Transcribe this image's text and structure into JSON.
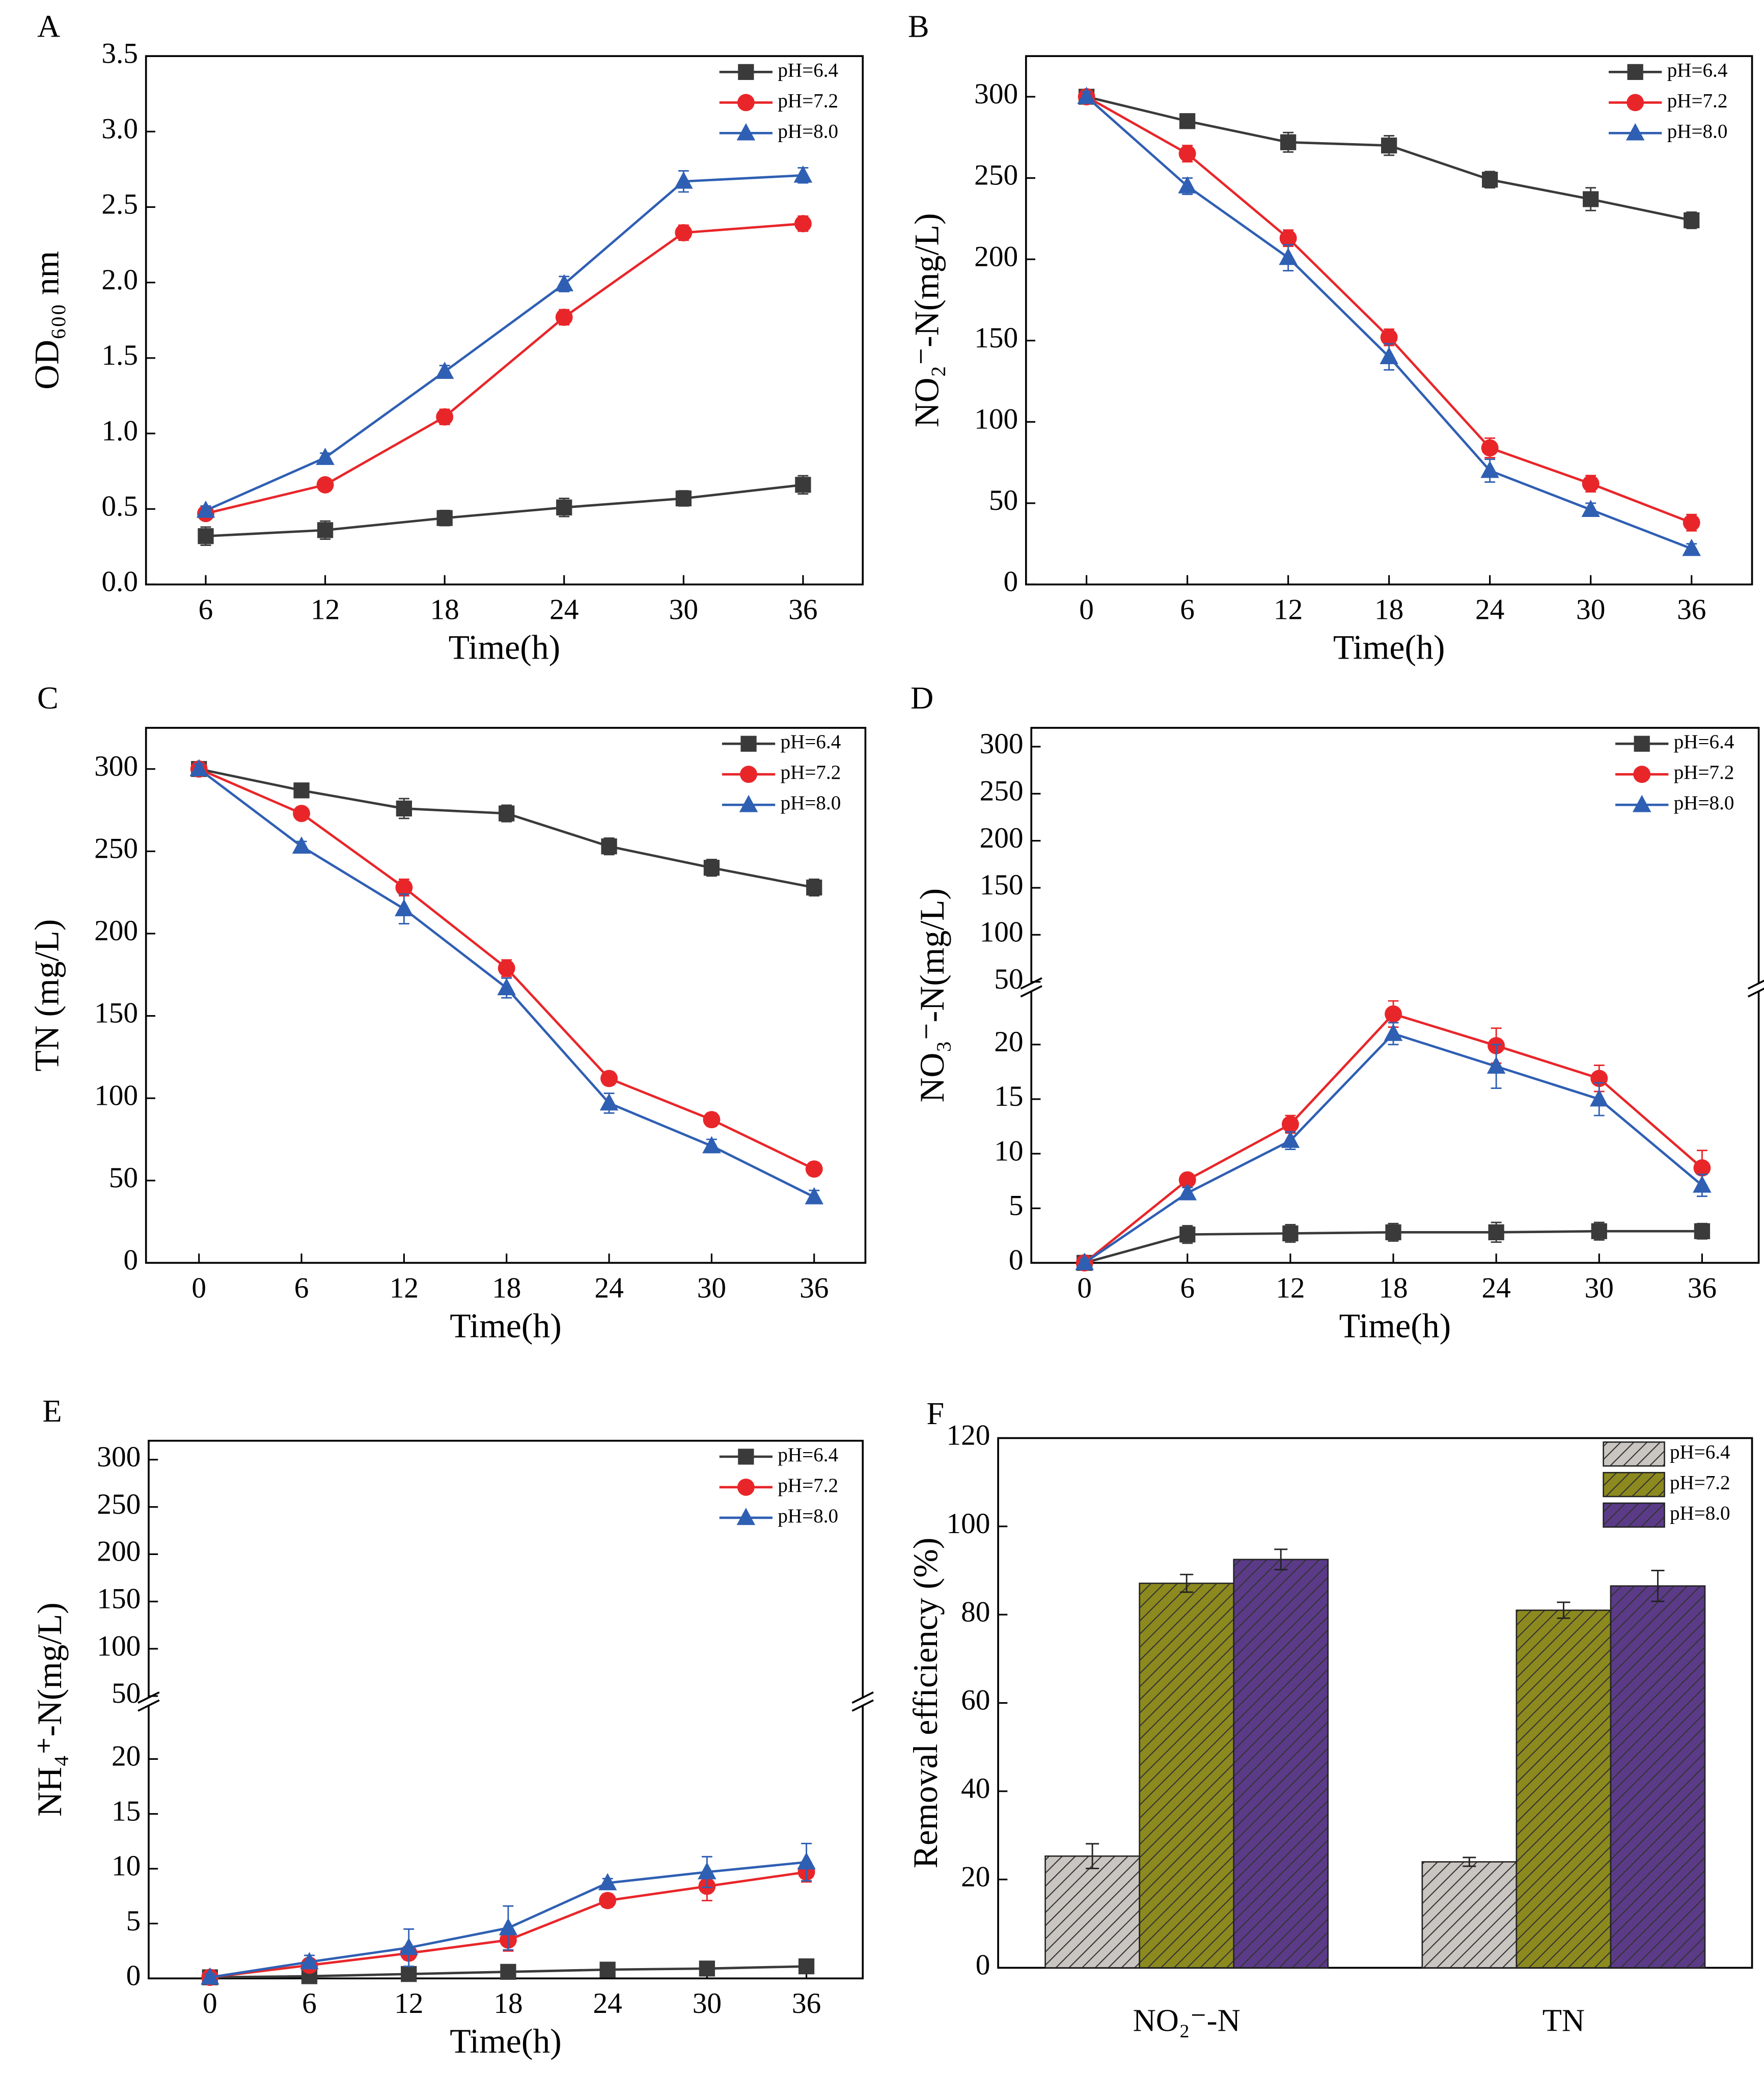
{
  "chart_data": [
    {
      "type": "line",
      "panel_label": "A",
      "x_label": "Time(h)",
      "y_label": "OD₆₀₀ nm",
      "x": [
        6,
        12,
        18,
        24,
        30,
        36
      ],
      "xlim": [
        3,
        39
      ],
      "xticks": [
        6,
        12,
        18,
        24,
        30,
        36
      ],
      "ylim": [
        0,
        3.5
      ],
      "yticks": [
        {
          "value": 0,
          "label": "0.0"
        },
        0.5,
        {
          "value": 1,
          "label": "1.0"
        },
        1.5,
        {
          "value": 2,
          "label": "2.0"
        },
        2.5,
        {
          "value": 3,
          "label": "3.0"
        },
        3.5
      ],
      "series": [
        {
          "name": "pH=6.4",
          "color": "#3a3a3a",
          "values": [
            0.32,
            0.36,
            0.44,
            0.51,
            0.57,
            0.66
          ],
          "errors": [
            0.06,
            0.06,
            0.05,
            0.06,
            0.05,
            0.06
          ]
        },
        {
          "name": "pH=7.2",
          "color": "#e8262a",
          "values": [
            0.47,
            0.66,
            1.11,
            1.77,
            2.33,
            2.39
          ],
          "errors": [
            0.03,
            0.03,
            0.05,
            0.05,
            0.05,
            0.05
          ]
        },
        {
          "name": "pH=8.0",
          "color": "#2f5fb3",
          "values": [
            0.49,
            0.84,
            1.41,
            1.99,
            2.67,
            2.71
          ],
          "errors": [
            0.03,
            0.03,
            0.04,
            0.05,
            0.07,
            0.05
          ]
        }
      ]
    },
    {
      "type": "line",
      "panel_label": "B",
      "x_label": "Time(h)",
      "y_label": "NO₂⁻-N(mg/L)",
      "x": [
        0,
        6,
        12,
        18,
        24,
        30,
        36
      ],
      "xlim": [
        -3.6,
        39.6
      ],
      "xticks": [
        0,
        6,
        12,
        18,
        24,
        30,
        36
      ],
      "ylim": [
        0,
        325
      ],
      "yticks": [
        0,
        50,
        100,
        150,
        200,
        250,
        300
      ],
      "series": [
        {
          "name": "pH=6.4",
          "color": "#3a3a3a",
          "values": [
            300,
            285,
            272,
            270,
            249,
            237,
            224
          ],
          "errors": [
            3,
            4,
            6,
            6,
            5,
            7,
            5
          ]
        },
        {
          "name": "pH=7.2",
          "color": "#e8262a",
          "values": [
            300,
            265,
            213,
            152,
            84,
            62,
            38
          ],
          "errors": [
            3,
            5,
            5,
            5,
            6,
            5,
            5
          ]
        },
        {
          "name": "pH=8.0",
          "color": "#2f5fb3",
          "values": [
            300,
            245,
            201,
            140,
            70,
            46,
            22
          ],
          "errors": [
            3,
            5,
            8,
            8,
            7,
            4,
            3
          ]
        }
      ]
    },
    {
      "type": "line",
      "panel_label": "C",
      "x_label": "Time(h)",
      "y_label": "TN (mg/L)",
      "x": [
        0,
        6,
        12,
        18,
        24,
        30,
        36
      ],
      "xlim": [
        -3.1,
        39
      ],
      "xticks": [
        0,
        6,
        12,
        18,
        24,
        30,
        36
      ],
      "ylim": [
        0,
        325
      ],
      "yticks": [
        0,
        50,
        100,
        150,
        200,
        250,
        300
      ],
      "series": [
        {
          "name": "pH=6.4",
          "color": "#3a3a3a",
          "values": [
            300,
            287,
            276,
            273,
            253,
            240,
            228
          ],
          "errors": [
            3,
            3,
            6,
            5,
            5,
            5,
            5
          ]
        },
        {
          "name": "pH=7.2",
          "color": "#e8262a",
          "values": [
            300,
            273,
            228,
            179,
            112,
            87,
            57
          ],
          "errors": [
            3,
            3,
            5,
            5,
            4,
            4,
            4
          ]
        },
        {
          "name": "pH=8.0",
          "color": "#2f5fb3",
          "values": [
            300,
            253,
            215,
            167,
            97,
            71,
            40
          ],
          "errors": [
            3,
            3,
            9,
            6,
            6,
            4,
            4
          ]
        }
      ]
    },
    {
      "type": "line",
      "panel_label": "D",
      "x_label": "Time(h)",
      "y_label": "NO₃⁻-N(mg/L)",
      "x": [
        0,
        6,
        12,
        18,
        24,
        30,
        36
      ],
      "xlim": [
        -3.1,
        39.3
      ],
      "xticks": [
        0,
        6,
        12,
        18,
        24,
        30,
        36
      ],
      "ylim": [
        0,
        25
      ],
      "yticks": [
        0,
        5,
        10,
        15,
        20
      ],
      "ylim_top": [
        47,
        320
      ],
      "yticks_top": [
        50,
        100,
        150,
        200,
        250,
        300
      ],
      "series": [
        {
          "name": "pH=6.4",
          "color": "#3a3a3a",
          "values": [
            0,
            2.6,
            2.7,
            2.8,
            2.8,
            2.9,
            2.9
          ],
          "errors": [
            0.3,
            0.8,
            0.8,
            0.8,
            0.9,
            0.8,
            0.7
          ]
        },
        {
          "name": "pH=7.2",
          "color": "#e8262a",
          "values": [
            0,
            7.6,
            12.7,
            22.8,
            19.9,
            16.9,
            8.7
          ],
          "errors": [
            0.3,
            0.5,
            0.8,
            1.2,
            1.6,
            1.2,
            1.6
          ]
        },
        {
          "name": "pH=8.0",
          "color": "#2f5fb3",
          "values": [
            0,
            6.4,
            11.2,
            21.0,
            18.0,
            15.0,
            7.1
          ],
          "errors": [
            0.3,
            0.5,
            0.8,
            1.0,
            2.0,
            1.5,
            1.0
          ]
        }
      ]
    },
    {
      "type": "line",
      "panel_label": "E",
      "x_label": "Time(h)",
      "y_label": "NH₄⁺-N(mg/L)",
      "x": [
        0,
        6,
        12,
        18,
        24,
        30,
        36
      ],
      "xlim": [
        -3.7,
        39.4
      ],
      "xticks": [
        0,
        6,
        12,
        18,
        24,
        30,
        36
      ],
      "ylim": [
        0,
        25
      ],
      "yticks": [
        0,
        5,
        10,
        15,
        20
      ],
      "ylim_top": [
        47,
        320
      ],
      "yticks_top": [
        50,
        100,
        150,
        200,
        250,
        300
      ],
      "series": [
        {
          "name": "pH=6.4",
          "color": "#3a3a3a",
          "values": [
            0.1,
            0.2,
            0.4,
            0.6,
            0.8,
            0.9,
            1.1
          ],
          "errors": [
            0.2,
            0.2,
            0.2,
            0.2,
            0.3,
            0.3,
            0.3
          ]
        },
        {
          "name": "pH=7.2",
          "color": "#e8262a",
          "values": [
            0.1,
            1.2,
            2.3,
            3.5,
            7.1,
            8.4,
            9.7
          ],
          "errors": [
            0.3,
            0.4,
            0.6,
            1.0,
            0.6,
            1.3,
            0.9
          ]
        },
        {
          "name": "pH=8.0",
          "color": "#2f5fb3",
          "values": [
            0.1,
            1.5,
            2.8,
            4.6,
            8.7,
            9.7,
            10.6
          ],
          "errors": [
            0.3,
            0.6,
            1.7,
            2.0,
            0.4,
            1.4,
            1.7
          ]
        }
      ]
    },
    {
      "type": "bar",
      "panel_label": "F",
      "y_label": "Removal efficiency (%)",
      "categories": [
        "NO₂⁻-N",
        "TN"
      ],
      "ylim": [
        0,
        120
      ],
      "yticks": [
        0,
        20,
        40,
        60,
        80,
        100,
        120
      ],
      "series": [
        {
          "name": "pH=6.4",
          "color": "#c9c5c1",
          "values": [
            25.3,
            24.0
          ],
          "errors": [
            2.8,
            1.0
          ]
        },
        {
          "name": "pH=7.2",
          "color": "#8c8a1f",
          "values": [
            87.1,
            81.0
          ],
          "errors": [
            2.0,
            1.8
          ]
        },
        {
          "name": "pH=8.0",
          "color": "#5b3b88",
          "values": [
            92.5,
            86.5
          ],
          "errors": [
            2.3,
            3.5
          ]
        }
      ]
    }
  ]
}
